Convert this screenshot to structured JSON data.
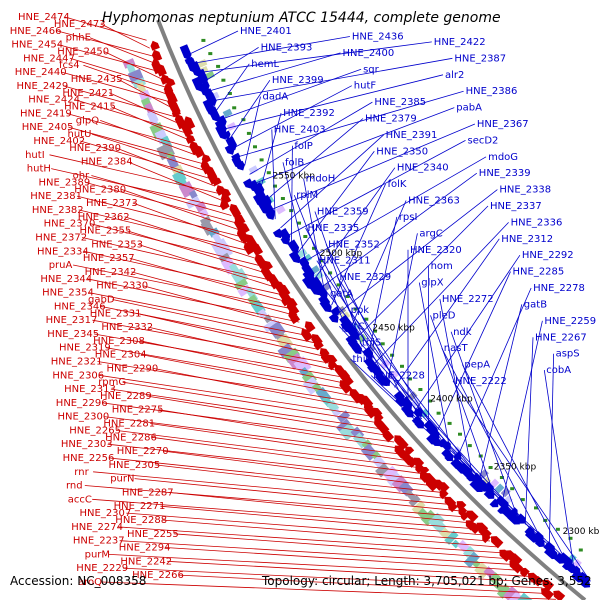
{
  "title": "Hyphomonas neptunium ATCC 15444, complete genome",
  "footer": {
    "accession": "Accession: NC_008358",
    "topology": "Topology: circular; Length: 3,705,021 bp; Genes: 3,552"
  },
  "colors": {
    "reverse_strand": "#cc0000",
    "forward_strand": "#0000cc",
    "backbone": "#808080",
    "gc_marker": "#2e8b22"
  },
  "scale_ticks": [
    "2550 kbp",
    "2500 kbp",
    "2450 kbp",
    "2400 kbp",
    "2350 kbp",
    "2300 kbp"
  ],
  "red_labels": [
    "HNE_2474",
    "HNE_2473",
    "HNE_2466",
    "phhE",
    "HNE_2454",
    "HNE_2450",
    "HNE_2447",
    "fcs4",
    "HNE_2440",
    "HNE_2435",
    "HNE_2429",
    "HNE_2421",
    "HNE_2424",
    "HNE_2415",
    "HNE_2419",
    "glpQ",
    "HNE_2405",
    "hutU",
    "HNE_2402",
    "HNE_2390",
    "hutI",
    "HNE_2384",
    "hutH",
    "ohr",
    "HNE_2389",
    "HNE_2380",
    "HNE_2381",
    "HNE_2373",
    "HNE_2382",
    "HNE_2362",
    "HNE_2370",
    "HNE_2355",
    "HNE_2372",
    "HNE_2353",
    "HNE_2334",
    "HNE_2357",
    "pruA",
    "HNE_2342",
    "HNE_2344",
    "HNE_2330",
    "HNE_2354",
    "gabD",
    "HNE_2346",
    "HNE_2331",
    "HNE_2317",
    "HNE_2332",
    "HNE_2345",
    "HNE_2308",
    "HNE_2319",
    "HNE_2304",
    "HNE_2321",
    "HNE_2290",
    "HNE_2306",
    "rpmG",
    "HNE_2313",
    "HNE_2289",
    "HNE_2296",
    "HNE_2275",
    "HNE_2300",
    "HNE_2281",
    "HNE_2265",
    "HNE_2286",
    "HNE_2303",
    "HNE_2270",
    "HNE_2256",
    "HNE_2305",
    "rnr",
    "purN",
    "rnd",
    "HNE_2287",
    "accC",
    "HNE_2271",
    "HNE_2307",
    "HNE_2288",
    "HNE_2274",
    "HNE_2255",
    "HNE_2237",
    "HNE_2294",
    "purM",
    "HNE_2242",
    "HNE_2229",
    "HNE_2266",
    "aroQ"
  ],
  "blue_labels": [
    "HNE_2401",
    "HNE_2436",
    "HNE_2422",
    "HNE_2393",
    "HNE_2400",
    "HNE_2387",
    "hemL",
    "sqr",
    "alr2",
    "HNE_2399",
    "hutF",
    "HNE_2386",
    "dadA",
    "HNE_2385",
    "pabA",
    "HNE_2392",
    "HNE_2379",
    "HNE_2367",
    "HNE_2403",
    "HNE_2391",
    "secD2",
    "folP",
    "HNE_2350",
    "mdoG",
    "folB",
    "HNE_2340",
    "HNE_2339",
    "mdoH",
    "folK",
    "HNE_2338",
    "rplM",
    "HNE_2363",
    "HNE_2337",
    "HNE_2359",
    "rpsI",
    "HNE_2336",
    "HNE_2335",
    "argC",
    "HNE_2312",
    "HNE_2352",
    "HNE_2320",
    "HNE_2292",
    "HNE_2311",
    "hom",
    "HNE_2285",
    "HNE_2329",
    "glpX",
    "HNE_2278",
    "gatA",
    "HNE_2272",
    "gatB",
    "ppk",
    "pleD",
    "HNE_2259",
    "gatC",
    "ndk",
    "HNE_2267",
    "thiS",
    "nasT",
    "aspS",
    "thiG",
    "pepA",
    "cobA",
    "HNE_2228",
    "HNE_2222"
  ]
}
